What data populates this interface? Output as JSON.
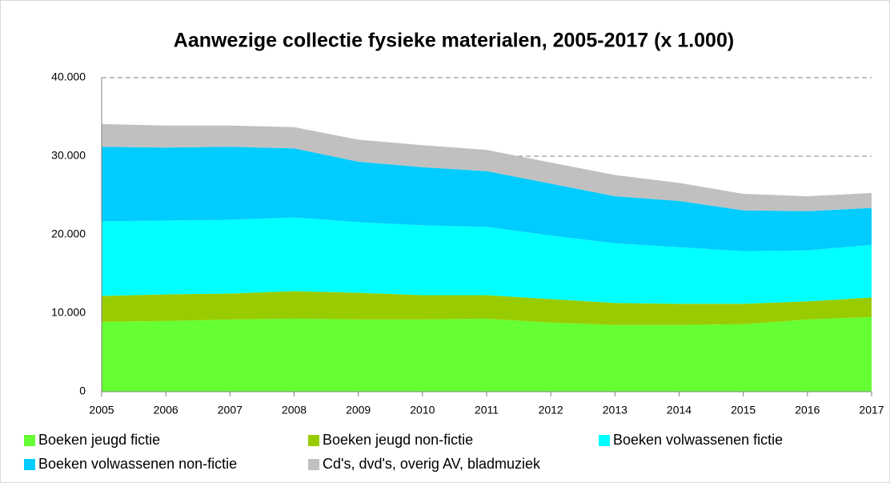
{
  "chart_data": {
    "type": "stacked_area",
    "title": "Aanwezige collectie fysieke materialen, 2005-2017 (x 1.000)",
    "categories": [
      "2005",
      "2006",
      "2007",
      "2008",
      "2009",
      "2010",
      "2011",
      "2012",
      "2013",
      "2014",
      "2015",
      "2016",
      "2017"
    ],
    "series": [
      {
        "name": "Boeken jeugd fictie",
        "color": "#66ff33",
        "values": [
          8900,
          9000,
          9200,
          9300,
          9200,
          9200,
          9300,
          8800,
          8500,
          8500,
          8600,
          9200,
          9500
        ]
      },
      {
        "name": "Boeken jeugd non-fictie",
        "color": "#99cc00",
        "values": [
          3300,
          3400,
          3300,
          3500,
          3400,
          3100,
          3000,
          3000,
          2800,
          2700,
          2600,
          2300,
          2500
        ]
      },
      {
        "name": "Boeken volwassenen fictie",
        "color": "#00ffff",
        "values": [
          9500,
          9400,
          9400,
          9400,
          9000,
          8900,
          8700,
          8100,
          7600,
          7200,
          6700,
          6500,
          6700
        ]
      },
      {
        "name": "Boeken volwassenen non-fictie",
        "color": "#00ccff",
        "values": [
          9500,
          9300,
          9300,
          8800,
          7700,
          7400,
          7100,
          6600,
          6000,
          5900,
          5200,
          5000,
          4700
        ]
      },
      {
        "name": "Cd's, dvd's, overig AV, bladmuziek",
        "color": "#c0c0c0",
        "values": [
          2900,
          2800,
          2700,
          2700,
          2800,
          2800,
          2700,
          2700,
          2700,
          2300,
          2100,
          1900,
          1900
        ]
      }
    ],
    "ylim": [
      0,
      40000
    ],
    "yticks": [
      0,
      {
        "value": 10000,
        "label": "10.000"
      },
      {
        "value": 20000,
        "label": "20.000"
      },
      {
        "value": 30000,
        "label": "30.000"
      },
      {
        "value": 40000,
        "label": "40.000"
      }
    ],
    "grid": true
  }
}
